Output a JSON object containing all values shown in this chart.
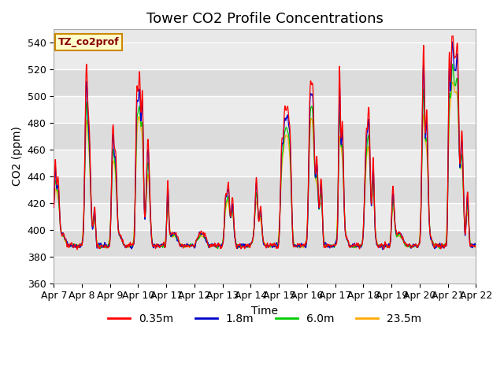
{
  "title": "Tower CO2 Profile Concentrations",
  "xlabel": "Time",
  "ylabel": "CO2 (ppm)",
  "ylim": [
    360,
    550
  ],
  "yticks": [
    360,
    380,
    400,
    420,
    440,
    460,
    480,
    500,
    520,
    540
  ],
  "legend_label": "TZ_co2prof",
  "series_labels": [
    "0.35m",
    "1.8m",
    "6.0m",
    "23.5m"
  ],
  "series_colors": [
    "#ff0000",
    "#0000cc",
    "#00cc00",
    "#ffaa00"
  ],
  "background_color": "#ffffff",
  "plot_bg_color": "#e8e8e8",
  "n_points": 2160,
  "xtick_labels": [
    "Apr 7",
    "Apr 8",
    "Apr 9",
    "Apr 10",
    "Apr 11",
    "Apr 12",
    "Apr 13",
    "Apr 14",
    "Apr 15",
    "Apr 16",
    "Apr 17",
    "Apr 18",
    "Apr 19",
    "Apr 20",
    "Apr 21",
    "Apr 22"
  ],
  "title_fontsize": 13,
  "axis_fontsize": 10,
  "tick_fontsize": 9,
  "legend_box_color": "#ffffcc",
  "legend_box_edge": "#cc8800"
}
